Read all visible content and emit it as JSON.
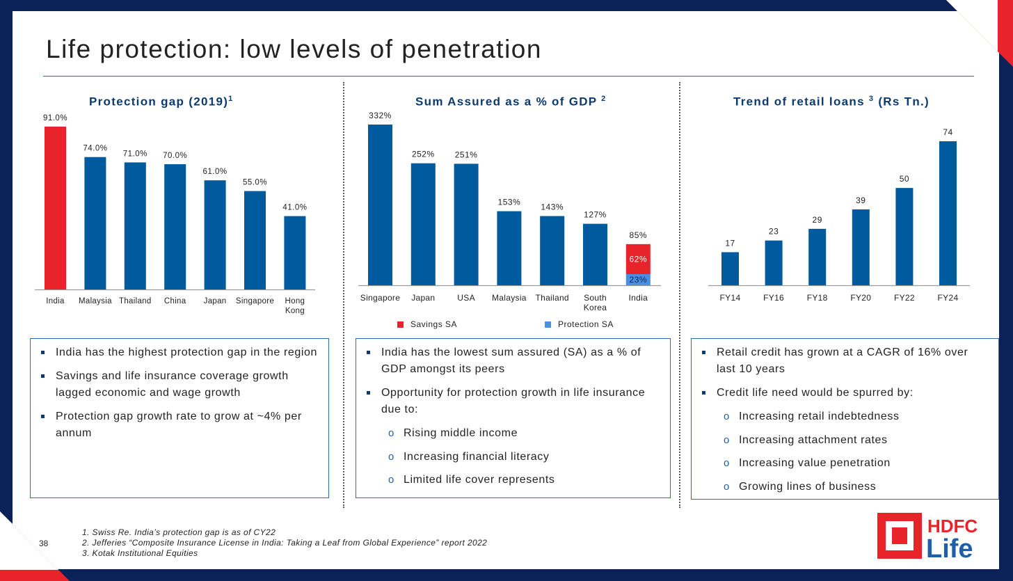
{
  "page": {
    "title": "Life protection: low levels of penetration",
    "page_number": "38",
    "footnotes": [
      "1. Swiss Re. India’s protection gap is as of CY22",
      "2. Jefferies “Composite Insurance License in India: Taking a Leaf from Global Experience” report 2022",
      "3. Kotak Institutional Equities"
    ],
    "logo": {
      "line1": "HDFC",
      "line2": "Life"
    },
    "colors": {
      "navy": "#0b2258",
      "bar_blue": "#005a9e",
      "red": "#e8232a",
      "protection_blue": "#4a90e2"
    }
  },
  "panels": [
    {
      "title": "Protection gap (2019)",
      "sup": "1",
      "bullets": [
        {
          "text": "India has the highest protection gap in the region"
        },
        {
          "text": "Savings and life insurance coverage growth lagged economic and wage growth"
        },
        {
          "text": "Protection gap growth rate to grow at ~4% per annum"
        }
      ]
    },
    {
      "title": "Sum Assured as a % of GDP",
      "sup": "2",
      "legend": [
        "Savings SA",
        "Protection SA"
      ],
      "bullets": [
        {
          "text": "India has the lowest sum assured (SA) as a % of GDP amongst its peers"
        },
        {
          "text": "Opportunity for protection growth in life insurance due to:",
          "sub": [
            "Rising middle income",
            "Increasing financial literacy",
            "Limited life cover represents"
          ]
        }
      ]
    },
    {
      "title": "Trend of retail loans",
      "sup": "3",
      "title_suffix": "(Rs Tn.)",
      "bullets": [
        {
          "text": "Retail credit has grown at a CAGR of 16% over last 10 years"
        },
        {
          "text": "Credit life need would be spurred by:",
          "sub": [
            "Increasing retail indebtedness",
            "Increasing attachment rates",
            "Increasing value penetration",
            "Growing lines of business"
          ]
        }
      ]
    }
  ],
  "chart_data": [
    {
      "type": "bar",
      "title": "Protection gap (2019)",
      "categories": [
        "India",
        "Malaysia",
        "Thailand",
        "China",
        "Japan",
        "Singapore",
        "Hong Kong"
      ],
      "values": [
        91.0,
        74.0,
        71.0,
        70.0,
        61.0,
        55.0,
        41.0
      ],
      "value_labels": [
        "91.0%",
        "74.0%",
        "71.0%",
        "70.0%",
        "61.0%",
        "55.0%",
        "41.0%"
      ],
      "highlight": "India",
      "ylim": [
        0,
        91
      ],
      "grid": false,
      "xlabel": "",
      "ylabel": ""
    },
    {
      "type": "bar",
      "title": "Sum Assured as a % of GDP",
      "categories": [
        "Singapore",
        "Japan",
        "USA",
        "Malaysia",
        "Thailand",
        "South Korea",
        "India"
      ],
      "values": [
        332,
        252,
        251,
        153,
        143,
        127,
        85
      ],
      "value_labels": [
        "332%",
        "252%",
        "251%",
        "153%",
        "143%",
        "127%",
        "85%"
      ],
      "stacked_last": {
        "category": "India",
        "series": [
          {
            "name": "Protection SA",
            "value": 23,
            "label": "23%"
          },
          {
            "name": "Savings SA",
            "value": 62,
            "label": "62%"
          }
        ]
      },
      "legend": [
        "Savings SA",
        "Protection SA"
      ],
      "legend_position": "bottom",
      "ylim": [
        0,
        332
      ],
      "grid": false,
      "xlabel": "",
      "ylabel": ""
    },
    {
      "type": "bar",
      "title": "Trend of retail loans (Rs Tn.)",
      "categories": [
        "FY14",
        "FY16",
        "FY18",
        "FY20",
        "FY22",
        "FY24"
      ],
      "values": [
        17,
        23,
        29,
        39,
        50,
        74
      ],
      "value_labels": [
        "17",
        "23",
        "29",
        "39",
        "50",
        "74"
      ],
      "ylim": [
        0,
        74
      ],
      "grid": false,
      "xlabel": "",
      "ylabel": ""
    }
  ]
}
